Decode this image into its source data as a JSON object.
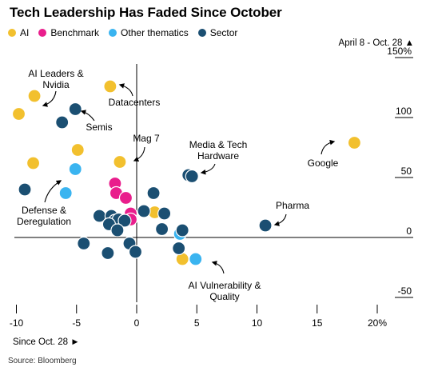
{
  "chart_data": {
    "type": "scatter",
    "title": "Tech Leadership Has Faded Since October",
    "date_range_label": "April 8 - Oct. 28",
    "xlabel": "Since Oct. 28",
    "source": "Source: Bloomberg",
    "xlim": [
      -10.5,
      23
    ],
    "ylim": [
      -55,
      150
    ],
    "x_ticks": [
      -10,
      -5,
      0,
      5,
      10,
      15,
      20
    ],
    "x_tick_labels": [
      "-10",
      "-5",
      "0",
      "5",
      "10",
      "15",
      "20%"
    ],
    "y_ticks": [
      150,
      100,
      50,
      0,
      -50
    ],
    "y_tick_labels": [
      "150%",
      "100",
      "50",
      "0",
      "-50"
    ],
    "legend_position": "top-left",
    "series": [
      {
        "name": "AI",
        "color": "#f2c02e",
        "points": [
          {
            "x": -8.5,
            "y": 118
          },
          {
            "x": -9.8,
            "y": 103
          },
          {
            "x": -2.2,
            "y": 126
          },
          {
            "x": -8.6,
            "y": 62
          },
          {
            "x": -4.9,
            "y": 73
          },
          {
            "x": -1.4,
            "y": 63
          },
          {
            "x": 1.5,
            "y": 21
          },
          {
            "x": 18.1,
            "y": 79
          },
          {
            "x": 3.8,
            "y": -18
          }
        ]
      },
      {
        "name": "Benchmark",
        "color": "#e91e8c",
        "points": [
          {
            "x": -1.8,
            "y": 45
          },
          {
            "x": -1.7,
            "y": 37
          },
          {
            "x": -0.9,
            "y": 33
          },
          {
            "x": -0.5,
            "y": 20
          },
          {
            "x": -0.5,
            "y": 15
          }
        ]
      },
      {
        "name": "Other thematics",
        "color": "#3ab4f0",
        "points": [
          {
            "x": -5.1,
            "y": 57
          },
          {
            "x": -5.9,
            "y": 37
          },
          {
            "x": 3.6,
            "y": 3
          },
          {
            "x": 4.9,
            "y": -18
          }
        ]
      },
      {
        "name": "Sector",
        "color": "#1b4f72",
        "points": [
          {
            "x": -5.1,
            "y": 107
          },
          {
            "x": -6.2,
            "y": 96
          },
          {
            "x": -9.3,
            "y": 40
          },
          {
            "x": 4.3,
            "y": 52
          },
          {
            "x": 4.6,
            "y": 51
          },
          {
            "x": 10.7,
            "y": 10
          },
          {
            "x": 1.4,
            "y": 37
          },
          {
            "x": 0.6,
            "y": 22
          },
          {
            "x": 2.3,
            "y": 20
          },
          {
            "x": -3.1,
            "y": 18
          },
          {
            "x": -2.1,
            "y": 18
          },
          {
            "x": -1.8,
            "y": 14
          },
          {
            "x": -1.5,
            "y": 15
          },
          {
            "x": -1.0,
            "y": 14
          },
          {
            "x": -2.3,
            "y": 11
          },
          {
            "x": -1.6,
            "y": 6
          },
          {
            "x": 2.1,
            "y": 7
          },
          {
            "x": 3.8,
            "y": 6
          },
          {
            "x": -4.4,
            "y": -5
          },
          {
            "x": -0.6,
            "y": -5
          },
          {
            "x": -2.4,
            "y": -13
          },
          {
            "x": -0.1,
            "y": -12
          },
          {
            "x": 3.5,
            "y": -9
          }
        ]
      }
    ],
    "annotations": [
      {
        "text": "AI Leaders & Nvidia",
        "lines": [
          "AI Leaders &",
          "Nvidia"
        ],
        "target": [
          -8.6,
          115
        ]
      },
      {
        "text": "Datacenters",
        "lines": [
          "Datacenters"
        ],
        "target": [
          -2.0,
          124
        ]
      },
      {
        "text": "Semis",
        "lines": [
          "Semis"
        ],
        "target": [
          -5.1,
          104
        ]
      },
      {
        "text": "Mag 7",
        "lines": [
          "Mag 7"
        ],
        "target": [
          -1.5,
          65
        ]
      },
      {
        "text": "Media & Tech Hardware",
        "lines": [
          "Media & Tech",
          "Hardware"
        ],
        "target": [
          4.5,
          55
        ]
      },
      {
        "text": "Google",
        "lines": [
          "Google"
        ],
        "target": [
          17.7,
          81
        ]
      },
      {
        "text": "Defense & Deregulation",
        "lines": [
          "Defense &",
          "Deregulation"
        ],
        "target": [
          -6.3,
          48
        ]
      },
      {
        "text": "Pharma",
        "lines": [
          "Pharma"
        ],
        "target": [
          10.7,
          12
        ]
      },
      {
        "text": "AI Vulnerability & Quality",
        "lines": [
          "AI Vulnerability &",
          "Quality"
        ],
        "target": [
          6.5,
          -20
        ]
      }
    ]
  }
}
